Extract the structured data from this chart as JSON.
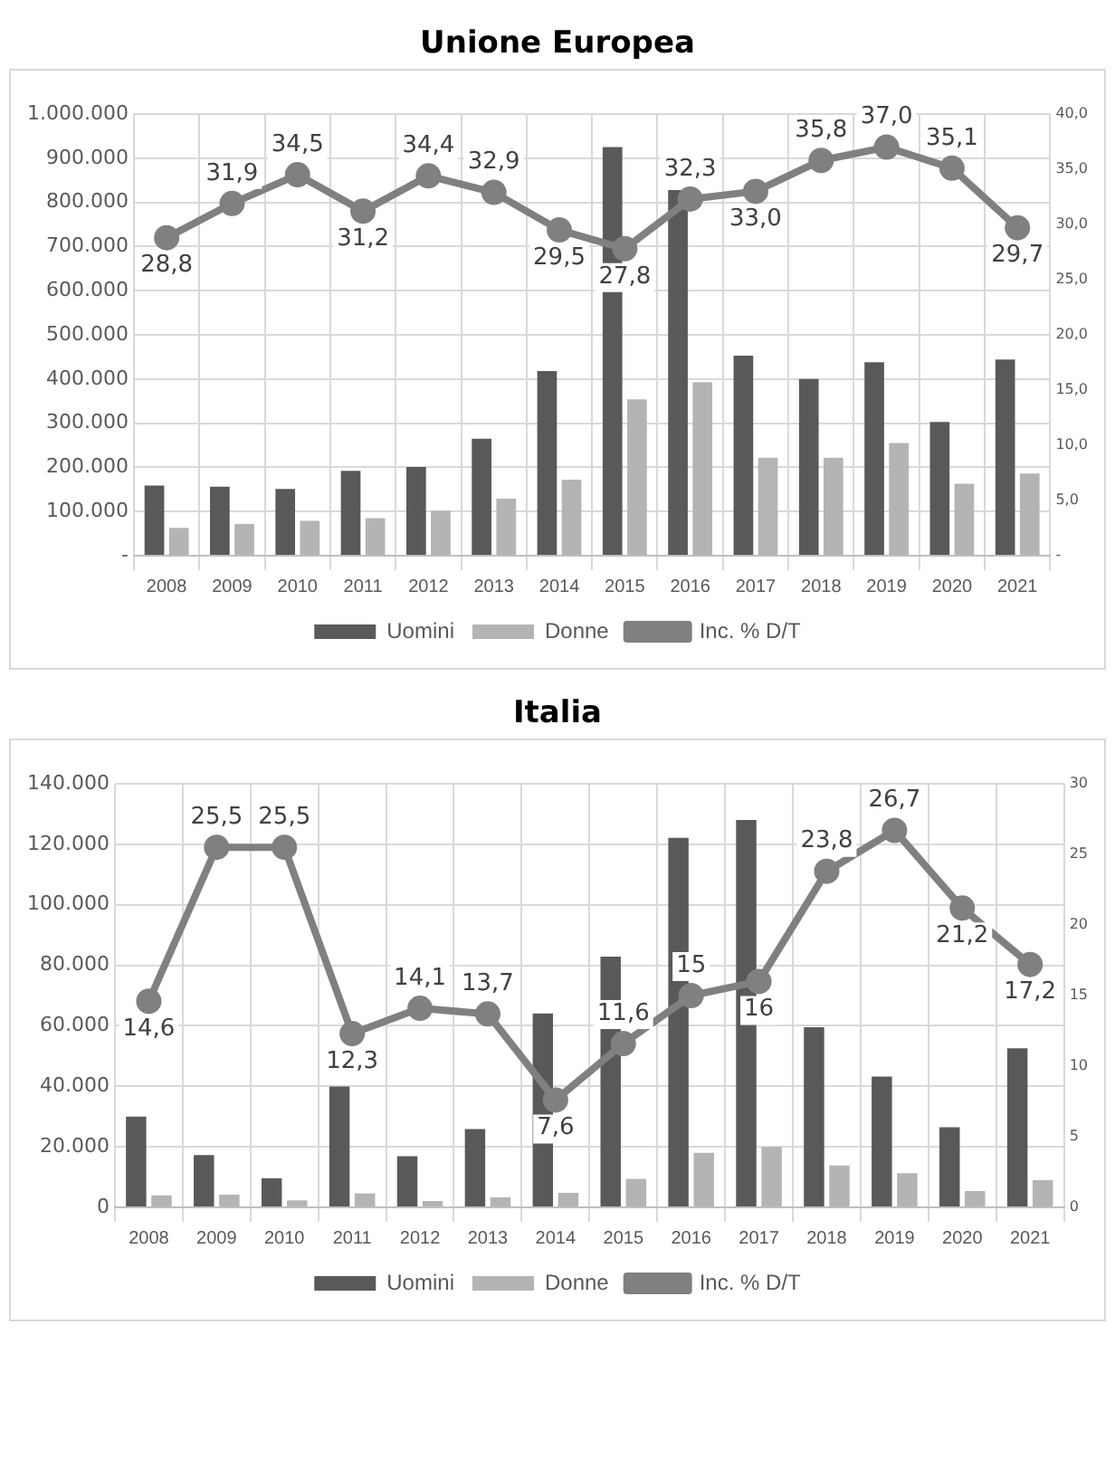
{
  "chart_data": [
    {
      "type": "bar",
      "title": "Unione Europea",
      "categories": [
        "2008",
        "2009",
        "2010",
        "2011",
        "2012",
        "2013",
        "2014",
        "2015",
        "2016",
        "2017",
        "2018",
        "2019",
        "2020",
        "2021"
      ],
      "series": [
        {
          "name": "Uomini",
          "color": "#595959",
          "values": [
            159000,
            156000,
            151000,
            192000,
            201000,
            265000,
            418000,
            925000,
            828000,
            453000,
            400000,
            438000,
            303000,
            444000
          ]
        },
        {
          "name": "Donne",
          "color": "#b4b4b4",
          "values": [
            63000,
            72000,
            79000,
            85000,
            102000,
            129000,
            172000,
            354000,
            393000,
            222000,
            222000,
            255000,
            163000,
            186000
          ]
        },
        {
          "name": "Inc. % D/T",
          "type": "line",
          "axis": "y2",
          "color": "#808080",
          "values": [
            28.8,
            31.9,
            34.5,
            31.2,
            34.4,
            32.9,
            29.5,
            27.8,
            32.3,
            33.0,
            35.8,
            37.0,
            35.1,
            29.7
          ],
          "value_labels": [
            "28,8",
            "31,9",
            "34,5",
            "31,2",
            "34,4",
            "32,9",
            "29,5",
            "27,8",
            "32,3",
            "33,0",
            "35,8",
            "37,0",
            "35,1",
            "29,7"
          ]
        }
      ],
      "ylim": [
        0,
        1000000
      ],
      "yticks": [
        {
          "value": 0,
          "label": "-"
        },
        {
          "value": 100000,
          "label": "100.000"
        },
        {
          "value": 200000,
          "label": "200.000"
        },
        {
          "value": 300000,
          "label": "300.000"
        },
        {
          "value": 400000,
          "label": "400.000"
        },
        {
          "value": 500000,
          "label": "500.000"
        },
        {
          "value": 600000,
          "label": "600.000"
        },
        {
          "value": 700000,
          "label": "700.000"
        },
        {
          "value": 800000,
          "label": "800.000"
        },
        {
          "value": 900000,
          "label": "900.000"
        },
        {
          "value": 1000000,
          "label": "1.000.000"
        }
      ],
      "y2lim": [
        0,
        40
      ],
      "y2ticks": [
        {
          "value": 0,
          "label": "-"
        },
        {
          "value": 5,
          "label": "5,0"
        },
        {
          "value": 10,
          "label": "10,0"
        },
        {
          "value": 15,
          "label": "15,0"
        },
        {
          "value": 20,
          "label": "20,0"
        },
        {
          "value": 25,
          "label": "25,0"
        },
        {
          "value": 30,
          "label": "30,0"
        },
        {
          "value": 35,
          "label": "35,0"
        },
        {
          "value": 40,
          "label": "40,0"
        }
      ],
      "grid": true,
      "legend": "bottom",
      "marker": "circle",
      "line_style": "solid"
    },
    {
      "type": "bar",
      "title": "Italia",
      "categories": [
        "2008",
        "2009",
        "2010",
        "2011",
        "2012",
        "2013",
        "2014",
        "2015",
        "2016",
        "2017",
        "2018",
        "2019",
        "2020",
        "2021"
      ],
      "series": [
        {
          "name": "Uomini",
          "color": "#595959",
          "values": [
            30000,
            17300,
            9600,
            39900,
            16900,
            25900,
            64100,
            82900,
            122100,
            128000,
            59500,
            43200,
            26500,
            52600
          ]
        },
        {
          "name": "Donne",
          "color": "#b4b4b4",
          "values": [
            4000,
            4200,
            2300,
            4600,
            2100,
            3300,
            4800,
            9400,
            18000,
            20000,
            13800,
            11300,
            5400,
            9000
          ]
        },
        {
          "name": "Inc. % D/T",
          "type": "line",
          "axis": "y2",
          "color": "#808080",
          "values": [
            14.6,
            25.5,
            25.5,
            12.3,
            14.1,
            13.7,
            7.6,
            11.6,
            15,
            16,
            23.8,
            26.7,
            21.2,
            17.2
          ],
          "value_labels": [
            "14,6",
            "25,5",
            "25,5",
            "12,3",
            "14,1",
            "13,7",
            "7,6",
            "11,6",
            "15",
            "16",
            "23,8",
            "26,7",
            "21,2",
            "17,2"
          ]
        }
      ],
      "ylim": [
        0,
        140000
      ],
      "yticks": [
        {
          "value": 0,
          "label": "0"
        },
        {
          "value": 20000,
          "label": "20.000"
        },
        {
          "value": 40000,
          "label": "40.000"
        },
        {
          "value": 60000,
          "label": "60.000"
        },
        {
          "value": 80000,
          "label": "80.000"
        },
        {
          "value": 100000,
          "label": "100.000"
        },
        {
          "value": 120000,
          "label": "120.000"
        },
        {
          "value": 140000,
          "label": "140.000"
        }
      ],
      "y2lim": [
        0,
        30
      ],
      "y2ticks": [
        0,
        5,
        10,
        15,
        20,
        25,
        30
      ],
      "grid": true,
      "legend": "bottom",
      "marker": "circle",
      "line_style": "solid"
    }
  ]
}
